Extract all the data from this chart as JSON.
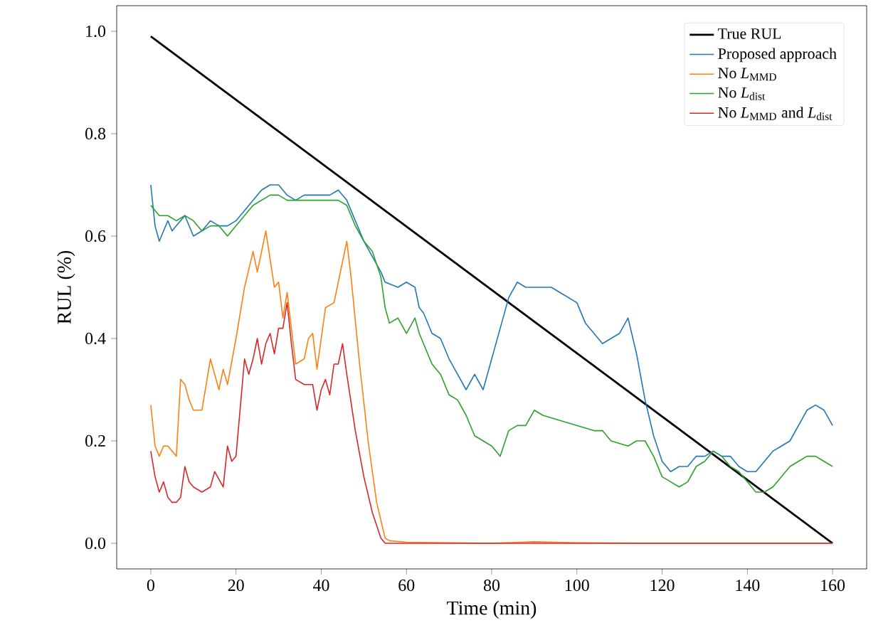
{
  "chart_data": {
    "type": "line",
    "xlabel": "Time (min)",
    "ylabel": "RUL (%)",
    "xlim": [
      -8,
      168
    ],
    "ylim": [
      -0.05,
      1.05
    ],
    "xticks": [
      0,
      20,
      40,
      60,
      80,
      100,
      120,
      140,
      160
    ],
    "yticks": [
      {
        "value": 0,
        "label": "0.0"
      },
      {
        "value": 0.2,
        "label": "0.2"
      },
      {
        "value": 0.4,
        "label": "0.4"
      },
      {
        "value": 0.6,
        "label": "0.6"
      },
      {
        "value": 0.8,
        "label": "0.8"
      },
      {
        "value": 1,
        "label": "1.0"
      }
    ],
    "grid": false,
    "legend": "top right",
    "marker": "none",
    "line_style": "solid",
    "series": [
      {
        "name": "True RUL",
        "color": "#000000",
        "x": [
          0,
          160
        ],
        "values": [
          0.99,
          0
        ]
      },
      {
        "name": "Proposed approach",
        "color": "#1f77b4",
        "x": [
          0,
          1,
          2,
          3,
          4,
          5,
          6,
          8,
          10,
          12,
          14,
          16,
          18,
          20,
          22,
          24,
          26,
          28,
          30,
          32,
          34,
          36,
          38,
          40,
          42,
          44,
          46,
          48,
          50,
          52,
          54,
          55,
          58,
          60,
          62,
          63,
          64,
          66,
          68,
          70,
          72,
          74,
          76,
          78,
          80,
          82,
          84,
          86,
          88,
          90,
          94,
          96,
          100,
          102,
          104,
          106,
          108,
          110,
          112,
          114,
          116,
          118,
          120,
          122,
          124,
          126,
          128,
          130,
          132,
          134,
          136,
          138,
          140,
          142,
          144,
          146,
          148,
          150,
          152,
          154,
          156,
          158,
          160
        ],
        "values": [
          0.7,
          0.62,
          0.59,
          0.61,
          0.63,
          0.61,
          0.62,
          0.64,
          0.6,
          0.61,
          0.63,
          0.62,
          0.62,
          0.63,
          0.65,
          0.67,
          0.69,
          0.7,
          0.7,
          0.68,
          0.67,
          0.68,
          0.68,
          0.68,
          0.68,
          0.69,
          0.67,
          0.63,
          0.59,
          0.56,
          0.53,
          0.51,
          0.5,
          0.51,
          0.5,
          0.46,
          0.45,
          0.41,
          0.4,
          0.36,
          0.33,
          0.3,
          0.33,
          0.3,
          0.36,
          0.42,
          0.48,
          0.51,
          0.5,
          0.5,
          0.5,
          0.49,
          0.47,
          0.43,
          0.41,
          0.39,
          0.4,
          0.41,
          0.44,
          0.37,
          0.28,
          0.21,
          0.16,
          0.14,
          0.15,
          0.15,
          0.17,
          0.17,
          0.18,
          0.17,
          0.17,
          0.15,
          0.14,
          0.14,
          0.16,
          0.18,
          0.19,
          0.2,
          0.23,
          0.26,
          0.27,
          0.26,
          0.23
        ]
      },
      {
        "name": "No *L*$_{MMD}$",
        "color": "#ff7f0e",
        "x": [
          0,
          1,
          2,
          3,
          4,
          6,
          7,
          8,
          9,
          10,
          12,
          14,
          15,
          16,
          17,
          18,
          20,
          22,
          24,
          25,
          27,
          29,
          30,
          31,
          32,
          34,
          36,
          37,
          38,
          39,
          41,
          43,
          45,
          46,
          47,
          49,
          51,
          53,
          55,
          56,
          60,
          80,
          90,
          100,
          120,
          160
        ],
        "values": [
          0.27,
          0.19,
          0.17,
          0.19,
          0.19,
          0.17,
          0.32,
          0.31,
          0.28,
          0.26,
          0.26,
          0.36,
          0.33,
          0.3,
          0.34,
          0.31,
          0.4,
          0.5,
          0.57,
          0.53,
          0.61,
          0.5,
          0.51,
          0.44,
          0.49,
          0.35,
          0.36,
          0.4,
          0.41,
          0.34,
          0.46,
          0.47,
          0.55,
          0.59,
          0.52,
          0.35,
          0.2,
          0.08,
          0.01,
          0.005,
          0.002,
          0,
          0.003,
          0.001,
          0,
          0
        ]
      },
      {
        "name": "No *L*$_{dist}$",
        "color": "#2ca02c",
        "x": [
          0,
          2,
          4,
          6,
          8,
          10,
          12,
          14,
          16,
          18,
          20,
          22,
          24,
          26,
          28,
          30,
          32,
          34,
          36,
          38,
          40,
          42,
          44,
          46,
          48,
          50,
          52,
          54,
          55,
          56,
          58,
          60,
          62,
          63,
          64,
          66,
          68,
          70,
          72,
          74,
          76,
          78,
          80,
          82,
          84,
          86,
          88,
          90,
          92,
          96,
          100,
          104,
          106,
          108,
          112,
          114,
          116,
          118,
          120,
          122,
          124,
          126,
          128,
          130,
          132,
          134,
          136,
          138,
          140,
          142,
          144,
          146,
          148,
          150,
          152,
          154,
          156,
          158,
          160
        ],
        "values": [
          0.66,
          0.64,
          0.64,
          0.63,
          0.64,
          0.63,
          0.61,
          0.62,
          0.62,
          0.6,
          0.62,
          0.64,
          0.66,
          0.67,
          0.68,
          0.68,
          0.67,
          0.67,
          0.67,
          0.67,
          0.67,
          0.67,
          0.67,
          0.66,
          0.62,
          0.59,
          0.57,
          0.52,
          0.46,
          0.43,
          0.44,
          0.41,
          0.44,
          0.41,
          0.39,
          0.35,
          0.33,
          0.29,
          0.28,
          0.25,
          0.21,
          0.2,
          0.19,
          0.17,
          0.22,
          0.23,
          0.23,
          0.26,
          0.25,
          0.24,
          0.23,
          0.22,
          0.22,
          0.2,
          0.19,
          0.2,
          0.2,
          0.17,
          0.13,
          0.12,
          0.11,
          0.12,
          0.15,
          0.16,
          0.18,
          0.17,
          0.15,
          0.14,
          0.12,
          0.1,
          0.1,
          0.11,
          0.13,
          0.15,
          0.16,
          0.17,
          0.17,
          0.16,
          0.15
        ]
      },
      {
        "name": "No *L*$_{MMD}$ and *L*$_{dist}$",
        "color": "#d62728",
        "x": [
          0,
          1,
          2,
          3,
          4,
          5,
          6,
          7,
          8,
          9,
          10,
          12,
          14,
          15,
          17,
          18,
          19,
          20,
          22,
          23,
          24,
          25,
          26,
          27,
          28,
          29,
          30,
          31,
          32,
          33,
          34,
          36,
          38,
          39,
          40,
          41,
          42,
          43,
          44,
          45,
          46,
          48,
          50,
          52,
          54,
          55,
          160
        ],
        "values": [
          0.18,
          0.13,
          0.1,
          0.12,
          0.09,
          0.08,
          0.08,
          0.09,
          0.15,
          0.12,
          0.11,
          0.1,
          0.11,
          0.14,
          0.11,
          0.19,
          0.16,
          0.17,
          0.36,
          0.33,
          0.36,
          0.4,
          0.35,
          0.39,
          0.41,
          0.37,
          0.42,
          0.42,
          0.47,
          0.39,
          0.32,
          0.31,
          0.31,
          0.26,
          0.3,
          0.32,
          0.29,
          0.35,
          0.35,
          0.39,
          0.33,
          0.22,
          0.13,
          0.06,
          0.01,
          0,
          0
        ]
      }
    ]
  }
}
